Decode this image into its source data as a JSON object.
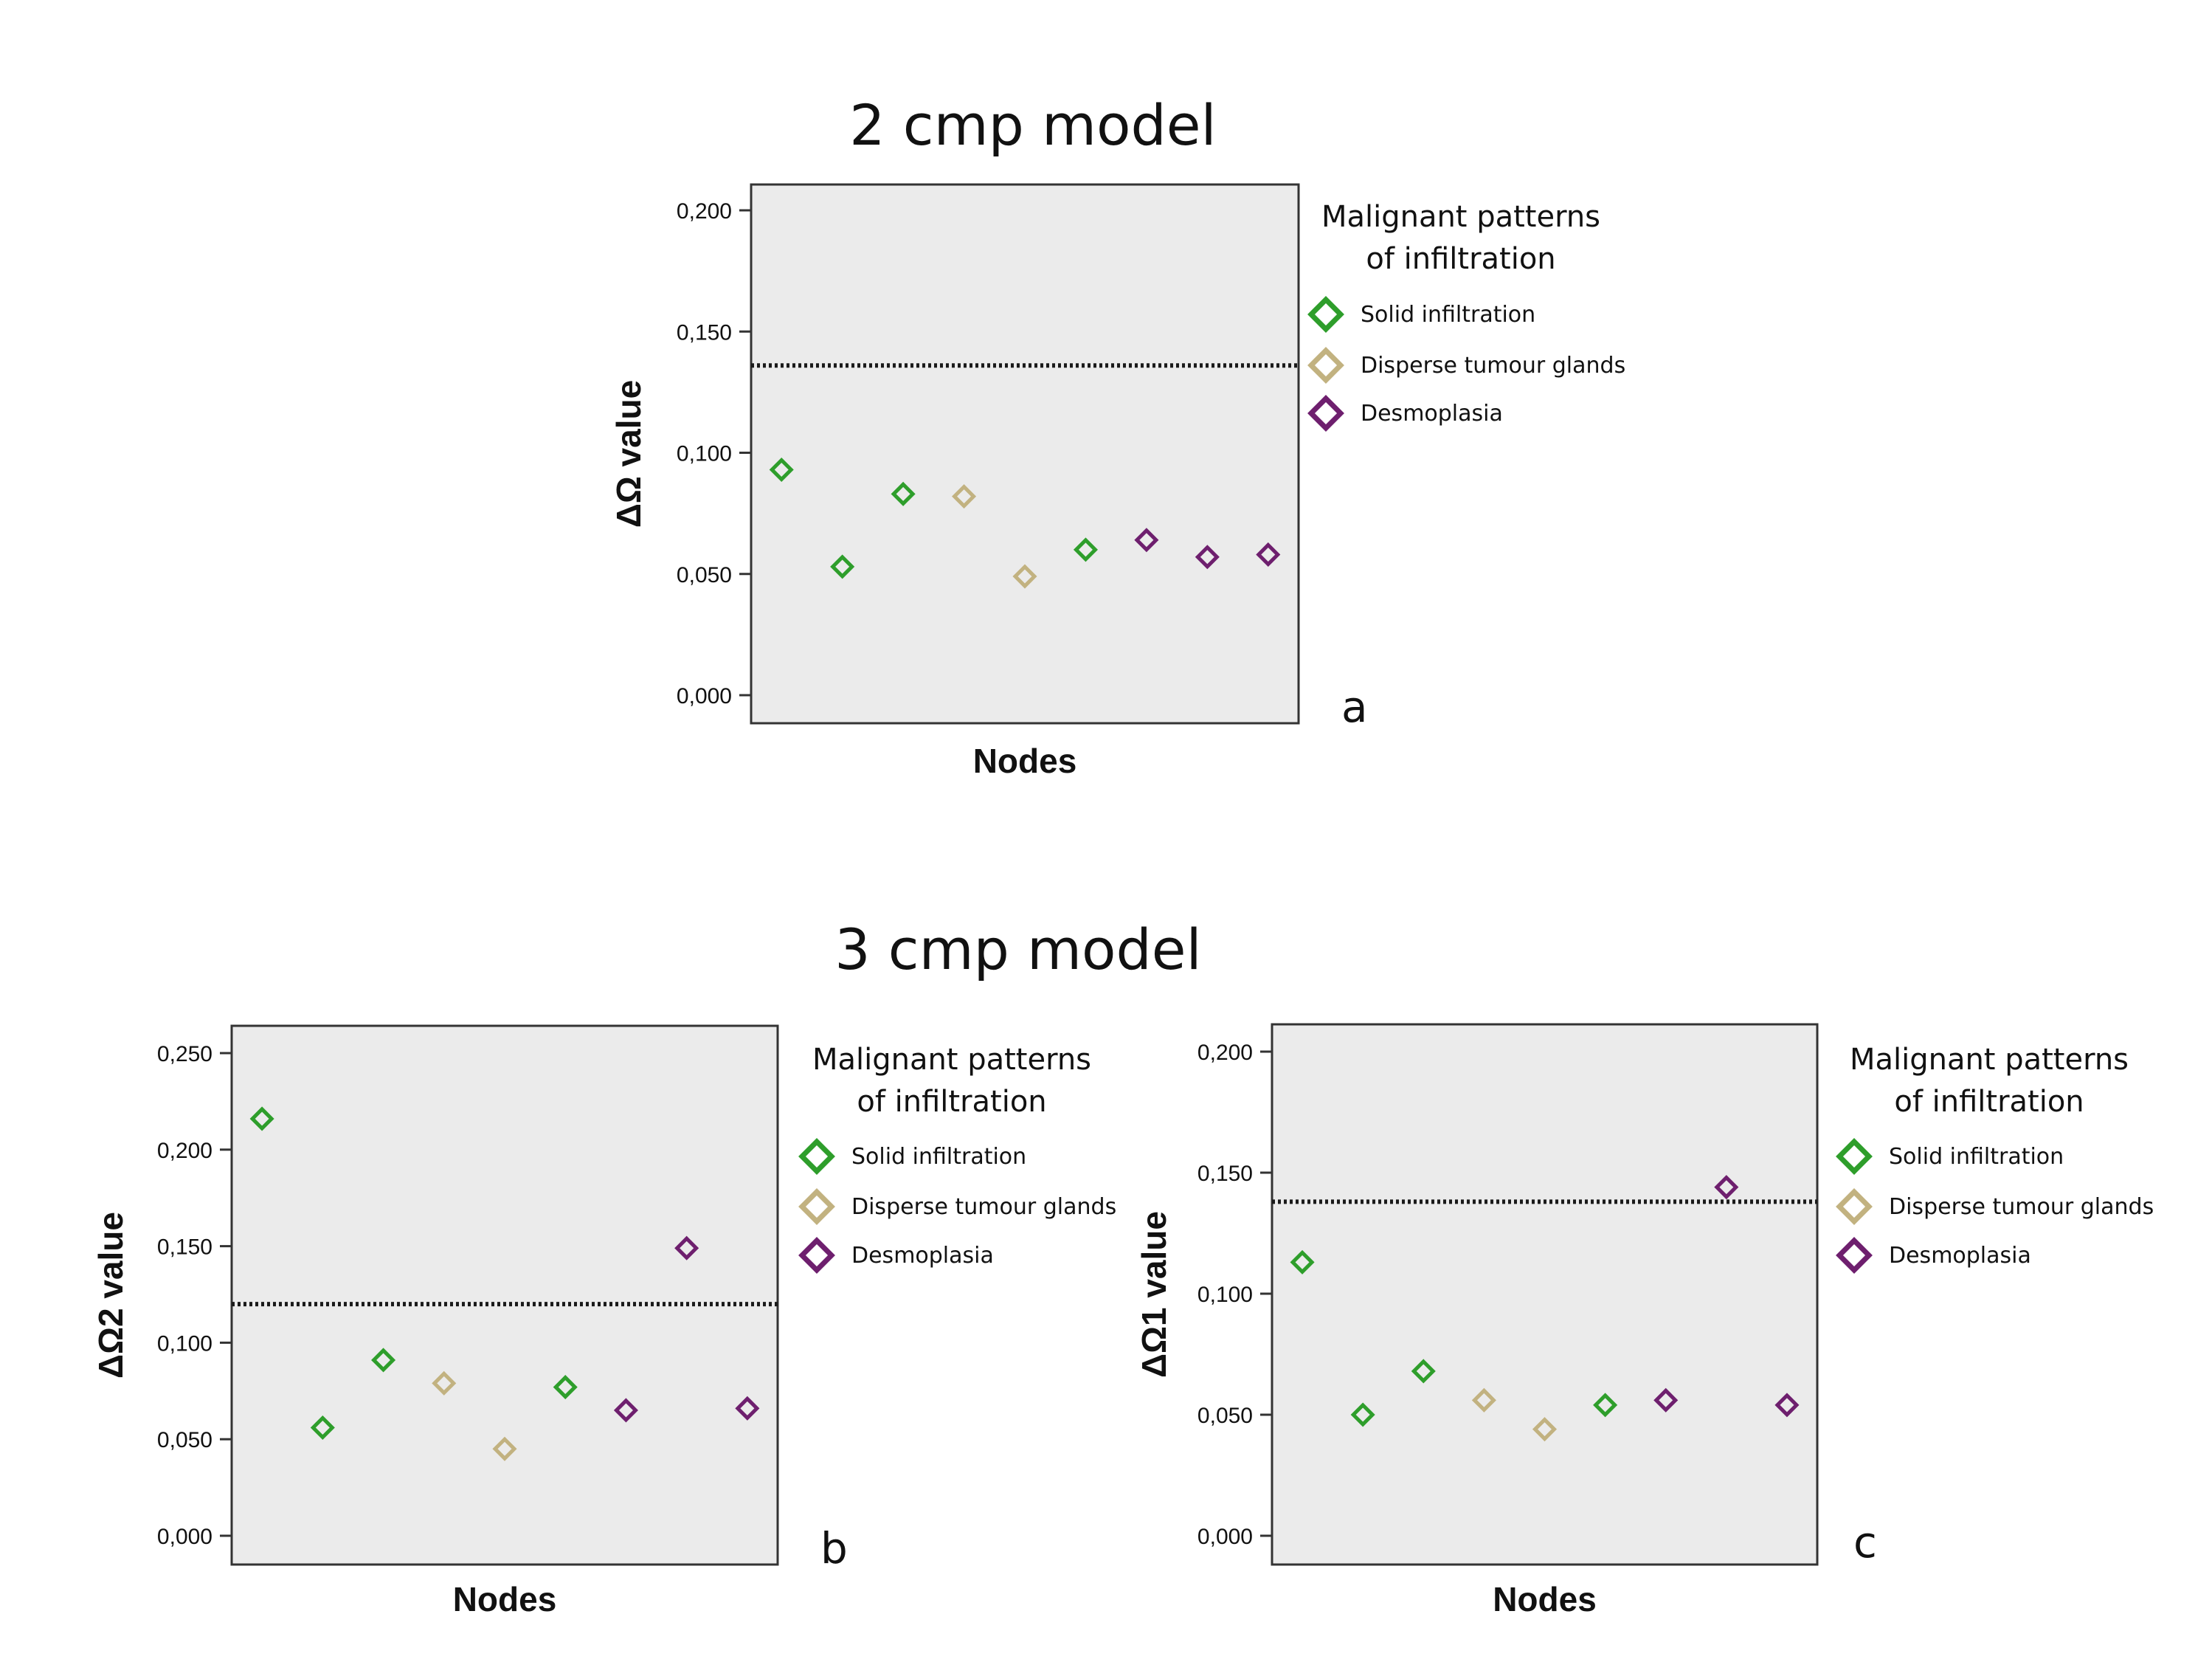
{
  "titles": {
    "top": "2 cmp model",
    "bottom": "3 cmp model"
  },
  "colors": {
    "Solid infiltration": "#2e9e2b",
    "Disperse tumour glands": "#c2b280",
    "Desmoplasia": "#6e1f6e",
    "plot_bg": "#ebebeb",
    "threshold": "#1a1a1a"
  },
  "legend": {
    "title_line1": "Malignant patterns",
    "title_line2": "of infiltration",
    "items": [
      "Solid infiltration",
      "Disperse tumour glands",
      "Desmoplasia"
    ]
  },
  "chart_data": [
    {
      "id": "a",
      "type": "scatter",
      "panel_letter": "a",
      "xlabel": "Nodes",
      "ylabel": "ΔΩ value",
      "ylim": [
        0,
        0.2
      ],
      "yticks": [
        "0,000",
        "0,050",
        "0,100",
        "0,150",
        "0,200"
      ],
      "yticks_values": [
        0,
        0.05,
        0.1,
        0.15,
        0.2
      ],
      "threshold": 0.136,
      "n_nodes": 9,
      "points": [
        {
          "node": 1,
          "y": 0.093,
          "group": "Solid infiltration"
        },
        {
          "node": 2,
          "y": 0.053,
          "group": "Solid infiltration"
        },
        {
          "node": 3,
          "y": 0.083,
          "group": "Solid infiltration"
        },
        {
          "node": 4,
          "y": 0.082,
          "group": "Disperse tumour glands"
        },
        {
          "node": 5,
          "y": 0.049,
          "group": "Disperse tumour glands"
        },
        {
          "node": 6,
          "y": 0.06,
          "group": "Solid infiltration"
        },
        {
          "node": 7,
          "y": 0.064,
          "group": "Desmoplasia"
        },
        {
          "node": 8,
          "y": 0.057,
          "group": "Desmoplasia"
        },
        {
          "node": 9,
          "y": 0.058,
          "group": "Desmoplasia"
        }
      ]
    },
    {
      "id": "b",
      "type": "scatter",
      "panel_letter": "b",
      "xlabel": "Nodes",
      "ylabel": "ΔΩ2 value",
      "ylim": [
        0,
        0.25
      ],
      "yticks": [
        "0,000",
        "0,050",
        "0,100",
        "0,150",
        "0,200",
        "0,250"
      ],
      "yticks_values": [
        0,
        0.05,
        0.1,
        0.15,
        0.2,
        0.25
      ],
      "threshold": 0.12,
      "n_nodes": 9,
      "points": [
        {
          "node": 1,
          "y": 0.216,
          "group": "Solid infiltration"
        },
        {
          "node": 2,
          "y": 0.056,
          "group": "Solid infiltration"
        },
        {
          "node": 3,
          "y": 0.091,
          "group": "Solid infiltration"
        },
        {
          "node": 4,
          "y": 0.079,
          "group": "Disperse tumour glands"
        },
        {
          "node": 5,
          "y": 0.045,
          "group": "Disperse tumour glands"
        },
        {
          "node": 6,
          "y": 0.077,
          "group": "Solid infiltration"
        },
        {
          "node": 7,
          "y": 0.065,
          "group": "Desmoplasia"
        },
        {
          "node": 8,
          "y": 0.149,
          "group": "Desmoplasia"
        },
        {
          "node": 9,
          "y": 0.066,
          "group": "Desmoplasia"
        }
      ]
    },
    {
      "id": "c",
      "type": "scatter",
      "panel_letter": "c",
      "xlabel": "Nodes",
      "ylabel": "ΔΩ1 value",
      "ylim": [
        0,
        0.2
      ],
      "yticks": [
        "0,000",
        "0,050",
        "0,100",
        "0,150",
        "0,200"
      ],
      "yticks_values": [
        0,
        0.05,
        0.1,
        0.15,
        0.2
      ],
      "threshold": 0.138,
      "n_nodes": 9,
      "points": [
        {
          "node": 1,
          "y": 0.113,
          "group": "Solid infiltration"
        },
        {
          "node": 2,
          "y": 0.05,
          "group": "Solid infiltration"
        },
        {
          "node": 3,
          "y": 0.068,
          "group": "Solid infiltration"
        },
        {
          "node": 4,
          "y": 0.056,
          "group": "Disperse tumour glands"
        },
        {
          "node": 5,
          "y": 0.044,
          "group": "Disperse tumour glands"
        },
        {
          "node": 6,
          "y": 0.054,
          "group": "Solid infiltration"
        },
        {
          "node": 7,
          "y": 0.056,
          "group": "Desmoplasia"
        },
        {
          "node": 8,
          "y": 0.144,
          "group": "Desmoplasia"
        },
        {
          "node": 9,
          "y": 0.054,
          "group": "Desmoplasia"
        }
      ]
    }
  ]
}
